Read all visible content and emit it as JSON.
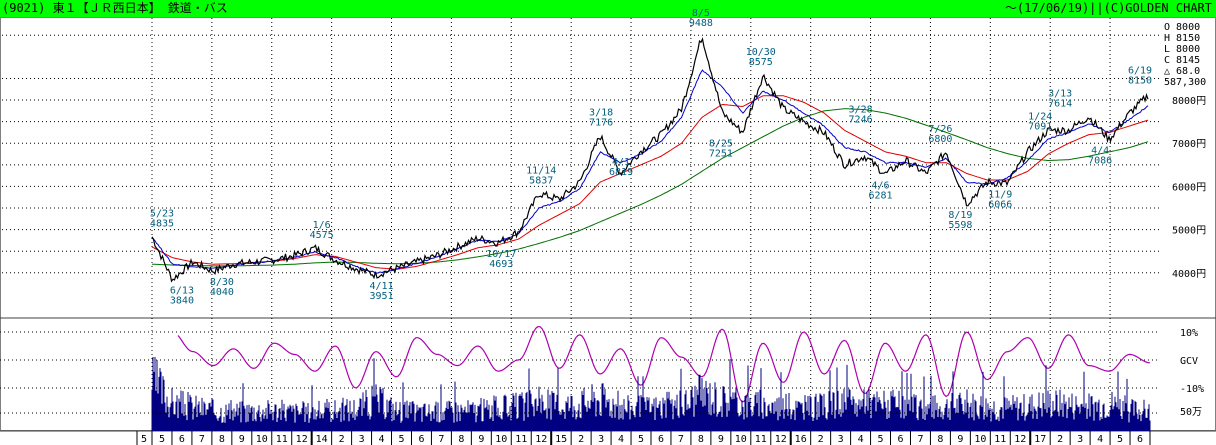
{
  "header": {
    "left": "(9021) 東１【ＪＲ西日本】 鉄道・バス",
    "right": "～(17/06/19)||(C)GOLDEN CHART"
  },
  "colors": {
    "header_bg": "#00ff00",
    "price": "#000000",
    "ma_short": "#0000cc",
    "ma_mid": "#e00000",
    "ma_long": "#007000",
    "gcv": "#b000b0",
    "volume": "#000080",
    "annotation": "#006080",
    "grid": "#000000"
  },
  "ohlc": [
    "O  8000",
    "H  8150",
    "L  8000",
    "C  8145",
    "△ 68.0",
    "587,300"
  ],
  "chart_data": [
    {
      "type": "line",
      "title": "",
      "y_axis": {
        "ticks": [
          4000,
          5000,
          6000,
          7000,
          8000
        ],
        "tick_labels": [
          "4000円",
          "5000円",
          "6000円",
          "7000円",
          "8000円"
        ],
        "ylim": [
          3000,
          9900
        ]
      },
      "x_axis": {
        "month_labels": [
          "5",
          "6",
          "7",
          "8",
          "9",
          "10",
          "11",
          "12",
          "14",
          "2",
          "3",
          "4",
          "5",
          "6",
          "7",
          "8",
          "9",
          "10",
          "11",
          "12",
          "15",
          "2",
          "3",
          "4",
          "5",
          "6",
          "7",
          "8",
          "9",
          "10",
          "11",
          "12",
          "16",
          "2",
          "3",
          "4",
          "5",
          "6",
          "7",
          "8",
          "9",
          "10",
          "11",
          "12",
          "17",
          "2",
          "3",
          "4",
          "5",
          "6"
        ]
      },
      "series": [
        {
          "name": "",
          "values": [
            4835,
            3840,
            4250,
            4040,
            4200,
            4250,
            4300,
            4400,
            4575,
            4300,
            4100,
            3951,
            4100,
            4250,
            4400,
            4600,
            4800,
            4693,
            4950,
            5837,
            5700,
            6100,
            7176,
            6300,
            6819,
            7200,
            7800,
            9488,
            7700,
            7251,
            8575,
            7800,
            7500,
            7246,
            6500,
            6700,
            6281,
            6600,
            6300,
            6800,
            5598,
            6100,
            6066,
            6800,
            7300,
            7300,
            7614,
            7086,
            7700,
            8150
          ]
        },
        {
          "name": "",
          "values": [
            4835,
            4200,
            4150,
            4100,
            4180,
            4230,
            4280,
            4360,
            4480,
            4350,
            4150,
            4000,
            4080,
            4220,
            4370,
            4560,
            4760,
            4720,
            4900,
            5500,
            5650,
            5950,
            6800,
            6550,
            6750,
            7050,
            7600,
            8700,
            8300,
            7700,
            8200,
            8000,
            7700,
            7400,
            6900,
            6800,
            6550,
            6550,
            6450,
            6650,
            6100,
            6050,
            6200,
            6600,
            7100,
            7250,
            7450,
            7250,
            7550,
            7900
          ]
        },
        {
          "name": "",
          "values": [
            4600,
            4350,
            4250,
            4200,
            4210,
            4240,
            4270,
            4330,
            4420,
            4380,
            4250,
            4120,
            4080,
            4150,
            4280,
            4420,
            4580,
            4650,
            4780,
            5100,
            5350,
            5600,
            6100,
            6300,
            6500,
            6700,
            7000,
            7600,
            7900,
            7850,
            8100,
            8100,
            7950,
            7700,
            7300,
            7050,
            6800,
            6700,
            6550,
            6550,
            6300,
            6150,
            6150,
            6350,
            6750,
            7000,
            7200,
            7250,
            7400,
            7550
          ]
        },
        {
          "name": "",
          "values": [
            4200,
            4180,
            4170,
            4160,
            4160,
            4170,
            4180,
            4200,
            4230,
            4250,
            4240,
            4220,
            4210,
            4220,
            4250,
            4300,
            4370,
            4450,
            4550,
            4680,
            4820,
            4980,
            5180,
            5380,
            5580,
            5800,
            6050,
            6350,
            6650,
            6900,
            7150,
            7400,
            7600,
            7750,
            7800,
            7780,
            7700,
            7580,
            7420,
            7250,
            7080,
            6900,
            6760,
            6650,
            6600,
            6620,
            6700,
            6800,
            6900,
            7050
          ]
        }
      ],
      "annotations": [
        {
          "date": "5/23",
          "value": "4835"
        },
        {
          "date": "6/13",
          "value": "3840"
        },
        {
          "date": "8/30",
          "value": "4040"
        },
        {
          "date": "1/6",
          "value": "4575"
        },
        {
          "date": "4/11",
          "value": "3951"
        },
        {
          "date": "10/17",
          "value": "4693"
        },
        {
          "date": "11/14",
          "value": "5837"
        },
        {
          "date": "3/18",
          "value": "7176"
        },
        {
          "date": "4/1",
          "value": "6819"
        },
        {
          "date": "8/5",
          "value": "9488"
        },
        {
          "date": "8/25",
          "value": "7251"
        },
        {
          "date": "10/30",
          "value": "8575"
        },
        {
          "date": "3/28",
          "value": "7246"
        },
        {
          "date": "4/6",
          "value": "6281"
        },
        {
          "date": "7/26",
          "value": "6800"
        },
        {
          "date": "8/19",
          "value": "5598"
        },
        {
          "date": "11/9",
          "value": "6066"
        },
        {
          "date": "1/24",
          "value": "7091"
        },
        {
          "date": "3/13",
          "value": "7614"
        },
        {
          "date": "4/4",
          "value": "7086"
        },
        {
          "date": "6/19",
          "value": "8150"
        }
      ]
    },
    {
      "type": "line",
      "title": "",
      "y_axis": {
        "tick_labels": [
          "10%",
          "GCV",
          "-10%"
        ],
        "ylim": [
          -15,
          15
        ]
      },
      "series": [
        {
          "name": "GCV",
          "values": [
            -5,
            10,
            3,
            -2,
            4,
            -3,
            6,
            2,
            -4,
            5,
            -10,
            3,
            -6,
            8,
            2,
            -2,
            5,
            -4,
            0,
            12,
            -3,
            9,
            -5,
            4,
            -9,
            8,
            1,
            -6,
            11,
            -15,
            6,
            -8,
            10,
            -5,
            7,
            -12,
            6,
            -4,
            9,
            -13,
            10,
            -7,
            3,
            8,
            -3,
            9,
            -2,
            -4,
            2,
            -1
          ]
        }
      ]
    },
    {
      "type": "bar",
      "title": "",
      "y_axis": {
        "tick_labels": [
          "50万"
        ]
      },
      "series": [
        {
          "name": "",
          "values": [
            150,
            80,
            70,
            60,
            55,
            60,
            60,
            55,
            55,
            60,
            65,
            90,
            60,
            55,
            55,
            60,
            60,
            65,
            70,
            80,
            75,
            80,
            95,
            70,
            65,
            70,
            75,
            110,
            90,
            80,
            75,
            70,
            65,
            70,
            80,
            75,
            80,
            70,
            65,
            70,
            75,
            70,
            65,
            70,
            80,
            75,
            70,
            80,
            60,
            55
          ]
        }
      ]
    }
  ]
}
